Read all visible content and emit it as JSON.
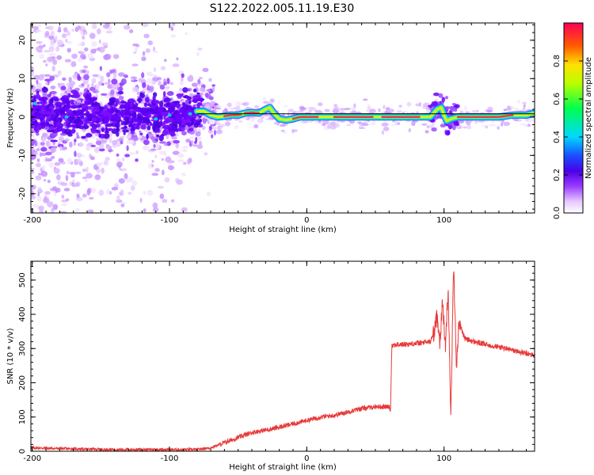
{
  "title": "S122.2022.005.11.19.E30",
  "colors": {
    "snr_line": "#e83a3a",
    "ridge": "#e63a4a"
  },
  "chart_data": [
    {
      "type": "heatmap",
      "xlabel": "Height of straight line (km)",
      "ylabel": "Frequency (Hz)",
      "xlim": [
        -201,
        166
      ],
      "ylim": [
        -25,
        24.5
      ],
      "x_ticks": [
        -200,
        -100,
        0,
        100
      ],
      "y_ticks": [
        -20,
        -10,
        0,
        10,
        20
      ],
      "colorbar": {
        "label": "Normalized spectral amplitude",
        "range": [
          0.0,
          1.0
        ],
        "ticks": [
          "0.0",
          "0.2",
          "0.4",
          "0.6",
          "0.8"
        ],
        "tick_values": [
          0.0,
          0.2,
          0.4,
          0.6,
          0.8
        ]
      },
      "ridge": {
        "x": [
          -201,
          -180,
          -160,
          -140,
          -120,
          -100,
          -85,
          -80,
          -75,
          -70,
          -65,
          -60,
          -55,
          -50,
          -45,
          -40,
          -35,
          -30,
          -27,
          -24,
          -20,
          -15,
          -10,
          -5,
          0,
          5,
          10,
          15,
          20,
          30,
          40,
          50,
          60,
          70,
          80,
          85,
          90,
          95,
          98,
          100,
          102,
          105,
          110,
          120,
          130,
          140,
          150,
          160,
          166
        ],
        "y": [
          1.5,
          0.0,
          1.0,
          0.0,
          1.0,
          0.0,
          1.0,
          1.5,
          1.5,
          0.5,
          0.0,
          0.2,
          0.5,
          0.5,
          1.0,
          1.2,
          1.0,
          2.0,
          2.5,
          1.0,
          -0.5,
          -0.8,
          -0.5,
          0.0,
          0.0,
          0.0,
          0.0,
          0.0,
          0.0,
          0.0,
          0.0,
          0.0,
          0.0,
          0.0,
          0.0,
          0.0,
          0.0,
          2.0,
          2.5,
          0.5,
          -1.0,
          -0.5,
          0.0,
          0.0,
          0.0,
          0.0,
          0.5,
          0.5,
          1.0
        ]
      }
    },
    {
      "type": "line",
      "xlabel": "Height of straight line (km)",
      "ylabel": "SNR (10 * v/v)",
      "xlim": [
        -201,
        166
      ],
      "ylim": [
        0,
        555
      ],
      "x_ticks": [
        -200,
        -100,
        0,
        100
      ],
      "y_ticks": [
        0,
        100,
        200,
        300,
        400,
        500
      ],
      "series": [
        {
          "x": [
            -201,
            -180,
            -160,
            -140,
            -120,
            -100,
            -80,
            -70,
            -60,
            -50,
            -40,
            -30,
            -20,
            -10,
            0,
            10,
            20,
            30,
            40,
            50,
            60,
            61,
            62,
            70,
            80,
            90,
            93,
            95,
            97,
            99,
            101,
            103,
            105,
            107,
            109,
            111,
            115,
            120,
            130,
            140,
            150,
            160,
            166
          ],
          "values": [
            10,
            8,
            6,
            5,
            5,
            5,
            5,
            10,
            25,
            40,
            55,
            62,
            70,
            80,
            90,
            100,
            105,
            115,
            125,
            130,
            130,
            120,
            310,
            312,
            315,
            320,
            350,
            400,
            320,
            440,
            300,
            480,
            100,
            550,
            250,
            380,
            330,
            322,
            312,
            305,
            295,
            285,
            280
          ]
        }
      ]
    }
  ]
}
